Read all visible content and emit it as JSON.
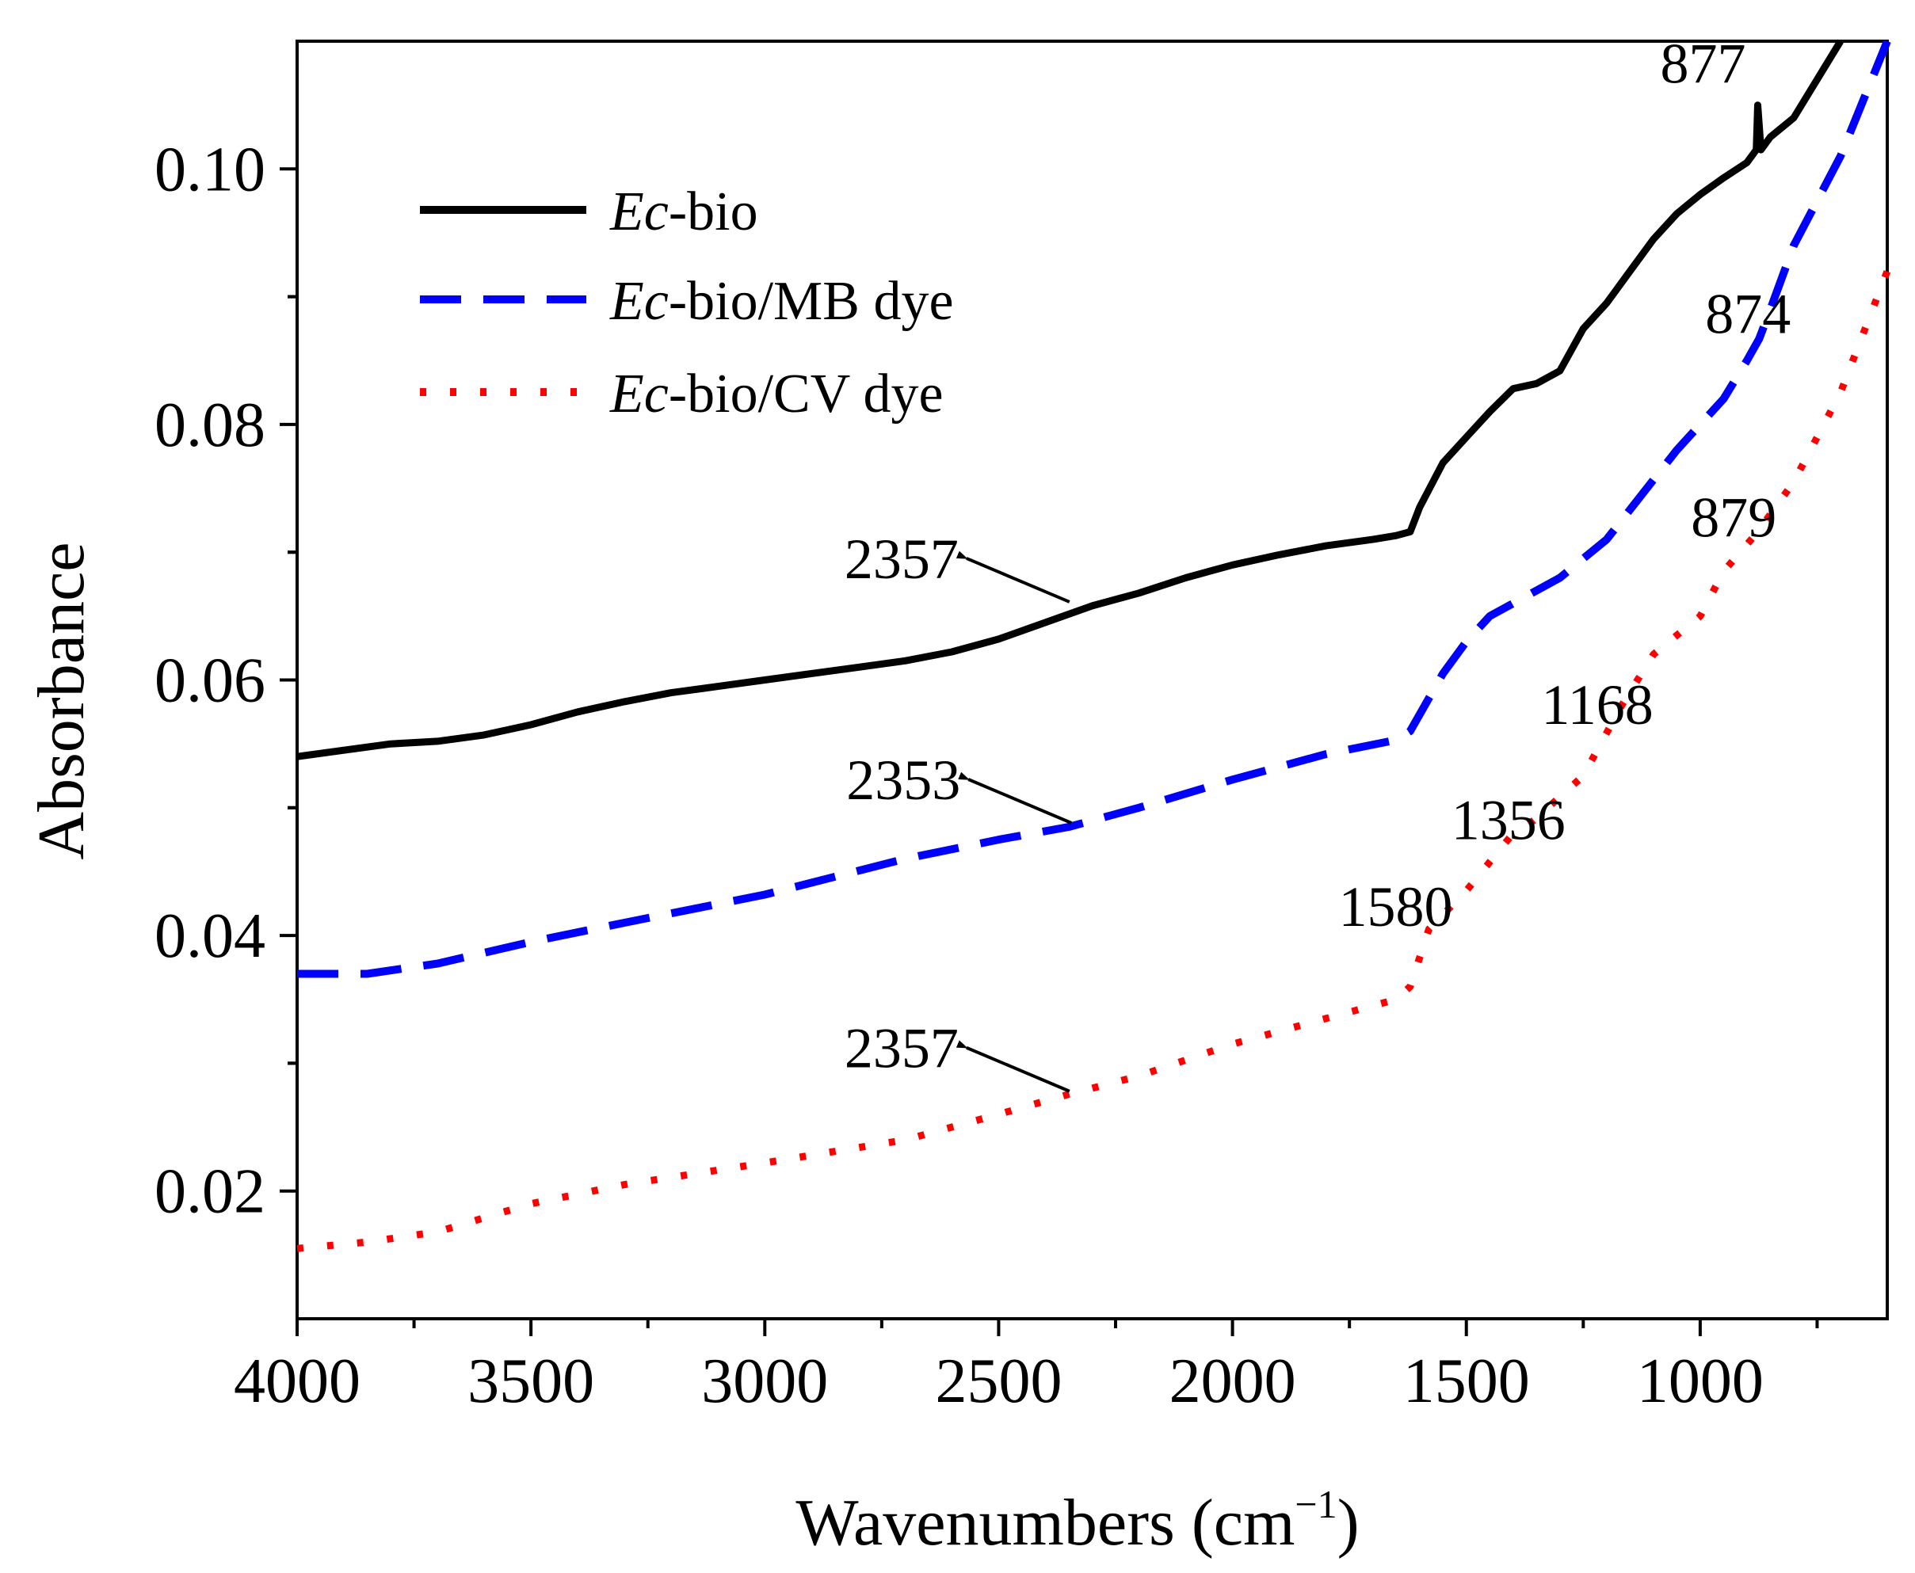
{
  "chart_data": {
    "type": "line",
    "title": "",
    "xlabel": "Wavenumbers (cm",
    "xlabel_sup": "−1",
    "xlabel_suffix": ")",
    "ylabel": "Absorbance",
    "xlim": [
      4000,
      600
    ],
    "ylim": [
      0.01,
      0.11
    ],
    "xticks": [
      4000,
      3500,
      3000,
      2500,
      2000,
      1500,
      1000
    ],
    "xtick_labels": [
      "4000",
      "3500",
      "3000",
      "2500",
      "2000",
      "1500",
      "1000"
    ],
    "yticks": [
      0.02,
      0.04,
      0.06,
      0.08,
      0.1
    ],
    "ytick_labels": [
      "0.02",
      "0.04",
      "0.06",
      "0.08",
      "0.10"
    ],
    "grid": false,
    "legend_position": "top-left",
    "series": [
      {
        "name_italic": "Ec",
        "name_rest": "-bio",
        "color": "#000000",
        "style": "solid",
        "x": [
          4000,
          3900,
          3800,
          3700,
          3600,
          3500,
          3400,
          3300,
          3200,
          3100,
          3000,
          2900,
          2800,
          2700,
          2600,
          2500,
          2400,
          2300,
          2200,
          2100,
          2000,
          1900,
          1800,
          1700,
          1650,
          1620,
          1600,
          1550,
          1500,
          1450,
          1400,
          1350,
          1300,
          1250,
          1200,
          1150,
          1100,
          1050,
          1000,
          950,
          900,
          880,
          877,
          870,
          850,
          800,
          750,
          700
        ],
        "y": [
          0.054,
          0.0545,
          0.055,
          0.0552,
          0.0557,
          0.0565,
          0.0575,
          0.0583,
          0.059,
          0.0595,
          0.06,
          0.0605,
          0.061,
          0.0615,
          0.0622,
          0.0632,
          0.0645,
          0.0658,
          0.0668,
          0.068,
          0.069,
          0.0698,
          0.0705,
          0.071,
          0.0713,
          0.0716,
          0.0735,
          0.077,
          0.079,
          0.081,
          0.0828,
          0.0832,
          0.0842,
          0.0875,
          0.0895,
          0.092,
          0.0945,
          0.0965,
          0.098,
          0.0993,
          0.1005,
          0.1015,
          0.105,
          0.1015,
          0.1025,
          0.104,
          0.107,
          0.111
        ]
      },
      {
        "name_italic": "Ec",
        "name_rest": "-bio/MB dye",
        "color": "#0000ff",
        "style": "dashed",
        "x": [
          4000,
          3850,
          3700,
          3500,
          3300,
          3000,
          2700,
          2500,
          2350,
          2200,
          2000,
          1800,
          1650,
          1620,
          1550,
          1500,
          1450,
          1300,
          1200,
          1050,
          950,
          900,
          874,
          850,
          800,
          700,
          600
        ],
        "y": [
          0.037,
          0.037,
          0.0378,
          0.0395,
          0.041,
          0.0432,
          0.046,
          0.0475,
          0.0485,
          0.05,
          0.0522,
          0.0542,
          0.0553,
          0.056,
          0.0605,
          0.063,
          0.065,
          0.068,
          0.071,
          0.078,
          0.082,
          0.085,
          0.0867,
          0.089,
          0.094,
          0.101,
          0.11
        ]
      },
      {
        "name_italic": "Ec",
        "name_rest": "-bio/CV dye",
        "color": "#ff0000",
        "style": "dotted",
        "x": [
          4000,
          3850,
          3700,
          3500,
          3300,
          3000,
          2700,
          2500,
          2357,
          2200,
          2000,
          1800,
          1700,
          1650,
          1620,
          1580,
          1500,
          1400,
          1356,
          1250,
          1168,
          1100,
          1000,
          950,
          879,
          800,
          700,
          600
        ],
        "y": [
          0.0155,
          0.016,
          0.0168,
          0.019,
          0.0205,
          0.0222,
          0.024,
          0.026,
          0.0275,
          0.029,
          0.0315,
          0.0335,
          0.0345,
          0.035,
          0.036,
          0.0405,
          0.0435,
          0.048,
          0.049,
          0.0525,
          0.058,
          0.062,
          0.065,
          0.0685,
          0.0715,
          0.0755,
          0.0825,
          0.092
        ]
      }
    ],
    "annotations": [
      {
        "text": "877",
        "x": 877,
        "y": 0.1055
      },
      {
        "text": "874",
        "x": 874,
        "y": 0.0887
      },
      {
        "text": "879",
        "x": 879,
        "y": 0.0734
      },
      {
        "text": "1168",
        "x": 1168,
        "y": 0.0581
      },
      {
        "text": "1356",
        "x": 1356,
        "y": 0.0491
      },
      {
        "text": "1580",
        "x": 1580,
        "y": 0.0423
      }
    ],
    "arrow_annotations": [
      {
        "text": "2357",
        "series": 0,
        "x": 2357,
        "y": 0.0658
      },
      {
        "text": "2353",
        "series": 1,
        "x": 2353,
        "y": 0.0485
      },
      {
        "text": "2357",
        "series": 2,
        "x": 2357,
        "y": 0.0275
      }
    ]
  }
}
